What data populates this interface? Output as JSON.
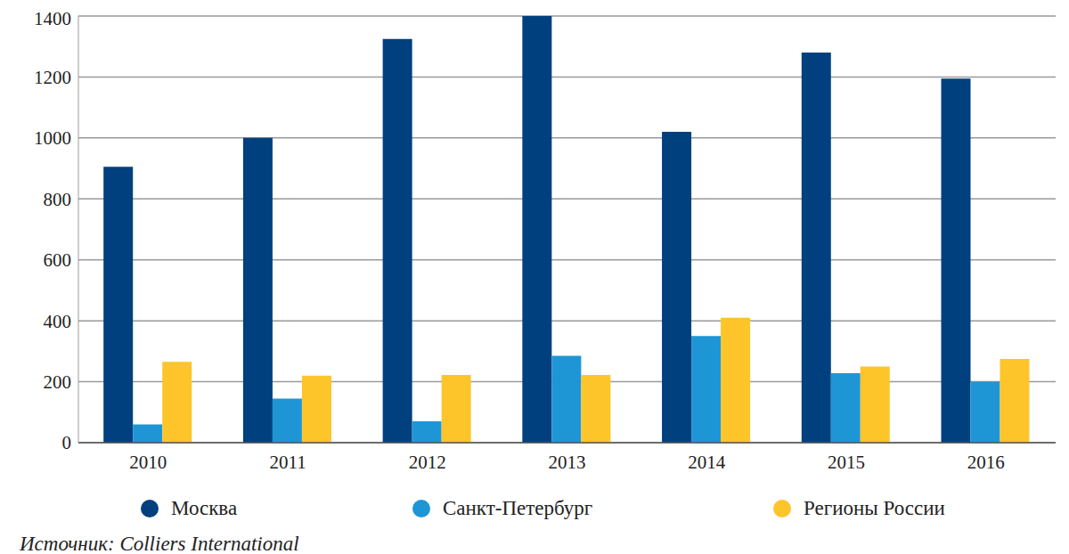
{
  "chart_data": {
    "type": "bar",
    "categories": [
      "2010",
      "2011",
      "2012",
      "2013",
      "2014",
      "2015",
      "2016"
    ],
    "series": [
      {
        "name": "Москва",
        "color": "#00407f",
        "values": [
          905,
          1000,
          1325,
          1400,
          1020,
          1280,
          1195
        ]
      },
      {
        "name": "Санкт-Петербург",
        "color": "#1e96d6",
        "values": [
          60,
          145,
          70,
          285,
          350,
          228,
          200
        ]
      },
      {
        "name": "Регионы России",
        "color": "#fdc52a",
        "values": [
          265,
          220,
          222,
          222,
          410,
          250,
          275
        ]
      }
    ],
    "ylim": [
      0,
      1400
    ],
    "yticks": [
      0,
      200,
      400,
      600,
      800,
      1000,
      1200,
      1400
    ],
    "grid": true,
    "legend": "bottom",
    "source": "Источник: Colliers International"
  }
}
